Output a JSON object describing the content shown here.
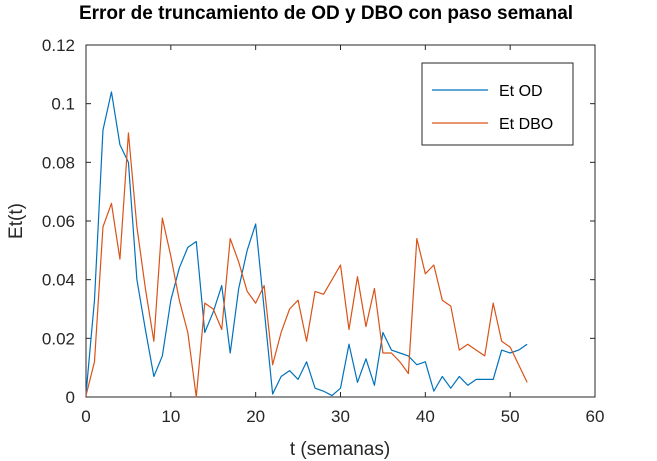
{
  "chart_data": {
    "type": "line",
    "title": "Error de truncamiento de OD y DBO con paso semanal",
    "xlabel": "t (semanas)",
    "ylabel": "Et(t)",
    "xlim": [
      0,
      60
    ],
    "ylim": [
      0,
      0.12
    ],
    "xticks": [
      0,
      10,
      20,
      30,
      40,
      50,
      60
    ],
    "yticks": [
      0,
      0.02,
      0.04,
      0.06,
      0.08,
      0.1,
      0.12
    ],
    "xtick_labels": [
      "0",
      "10",
      "20",
      "30",
      "40",
      "50",
      "60"
    ],
    "ytick_labels": [
      "0",
      "0.02",
      "0.04",
      "0.06",
      "0.08",
      "0.1",
      "0.12"
    ],
    "grid": false,
    "legend": "top-right",
    "x": [
      0,
      1,
      2,
      3,
      4,
      5,
      6,
      7,
      8,
      9,
      10,
      11,
      12,
      13,
      14,
      15,
      16,
      17,
      18,
      19,
      20,
      21,
      22,
      23,
      24,
      25,
      26,
      27,
      28,
      29,
      30,
      31,
      32,
      33,
      34,
      35,
      36,
      37,
      38,
      39,
      40,
      41,
      42,
      43,
      44,
      45,
      46,
      47,
      48,
      49,
      50,
      51,
      52
    ],
    "series": [
      {
        "name": "Et OD",
        "color": "#0072bd",
        "values": [
          0.001,
          0.033,
          0.091,
          0.104,
          0.086,
          0.08,
          0.04,
          0.023,
          0.007,
          0.014,
          0.033,
          0.044,
          0.051,
          0.053,
          0.022,
          0.029,
          0.038,
          0.015,
          0.037,
          0.05,
          0.059,
          0.03,
          0.001,
          0.007,
          0.009,
          0.006,
          0.012,
          0.003,
          0.002,
          0.0005,
          0.003,
          0.018,
          0.005,
          0.013,
          0.004,
          0.022,
          0.016,
          0.015,
          0.014,
          0.011,
          0.012,
          0.002,
          0.007,
          0.003,
          0.007,
          0.004,
          0.006,
          0.006,
          0.006,
          0.016,
          0.015,
          0.016,
          0.018
        ]
      },
      {
        "name": "Et DBO",
        "color": "#d95319",
        "values": [
          0.0005,
          0.012,
          0.058,
          0.066,
          0.047,
          0.09,
          0.058,
          0.037,
          0.019,
          0.061,
          0.048,
          0.033,
          0.022,
          0.0,
          0.032,
          0.03,
          0.023,
          0.054,
          0.046,
          0.036,
          0.032,
          0.038,
          0.011,
          0.022,
          0.03,
          0.033,
          0.019,
          0.036,
          0.035,
          0.04,
          0.045,
          0.023,
          0.041,
          0.024,
          0.037,
          0.015,
          0.015,
          0.012,
          0.008,
          0.054,
          0.042,
          0.045,
          0.033,
          0.031,
          0.016,
          0.018,
          0.016,
          0.014,
          0.032,
          0.019,
          0.017,
          0.011,
          0.005
        ]
      }
    ]
  }
}
